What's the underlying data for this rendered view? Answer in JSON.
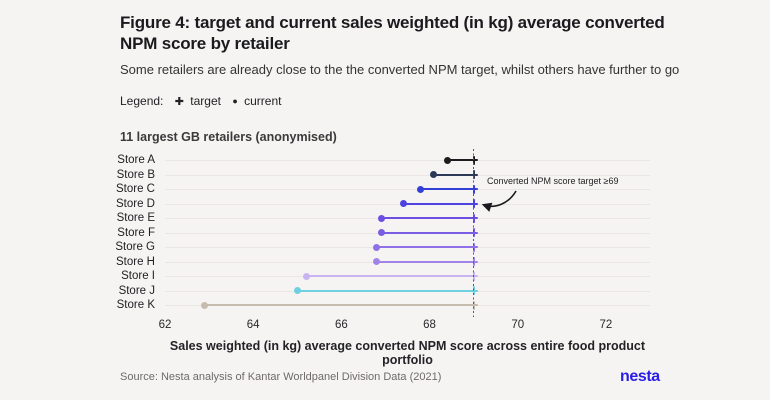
{
  "header": {
    "title": "Figure 4: target and current sales weighted (in kg) average converted NPM score by retailer",
    "subtitle": "Some retailers are already close to the the converted NPM target, whilst others have further to go",
    "legend_prefix": "Legend:",
    "legend_target_symbol": "✚",
    "legend_target_label": "target",
    "legend_current_symbol": "●",
    "legend_current_label": "current"
  },
  "chart_data": {
    "type": "dumbbell",
    "panel_title": "11 largest GB retailers (anonymised)",
    "categories": [
      "Store A",
      "Store B",
      "Store C",
      "Store D",
      "Store E",
      "Store F",
      "Store G",
      "Store H",
      "Store I",
      "Store J",
      "Store K"
    ],
    "series": [
      {
        "name": "current",
        "values": [
          68.4,
          68.1,
          67.8,
          67.4,
          66.9,
          66.9,
          66.8,
          66.8,
          65.2,
          65.0,
          62.9
        ]
      },
      {
        "name": "target",
        "values": [
          69,
          69,
          69,
          69,
          69,
          69,
          69,
          69,
          69,
          69,
          69
        ]
      }
    ],
    "colors": [
      "#1c1c1e",
      "#2b3956",
      "#3340d6",
      "#4e41e0",
      "#6a4fe1",
      "#7a5de3",
      "#8f71e7",
      "#a284e9",
      "#c9b4f1",
      "#6ed0e0",
      "#c6bcae"
    ],
    "xlabel": "Sales weighted (in kg) average converted NPM score across entire food product portfolio",
    "x_ticks": [
      62,
      64,
      66,
      68,
      70,
      72
    ],
    "xlim": [
      62,
      73
    ],
    "target_line": 69,
    "annotation": "Converted NPM score target ≥69",
    "grid": "horizontal-rows",
    "legend_position": "top-left"
  },
  "footer": {
    "source": "Source: Nesta analysis of Kantar Worldpanel Division Data (2021)",
    "logo": "nesta"
  },
  "colors": {
    "background": "#f5f4f2",
    "accent_blue": "#2a1de8",
    "grid": "#eae7e2",
    "target_line": "#58585a"
  }
}
